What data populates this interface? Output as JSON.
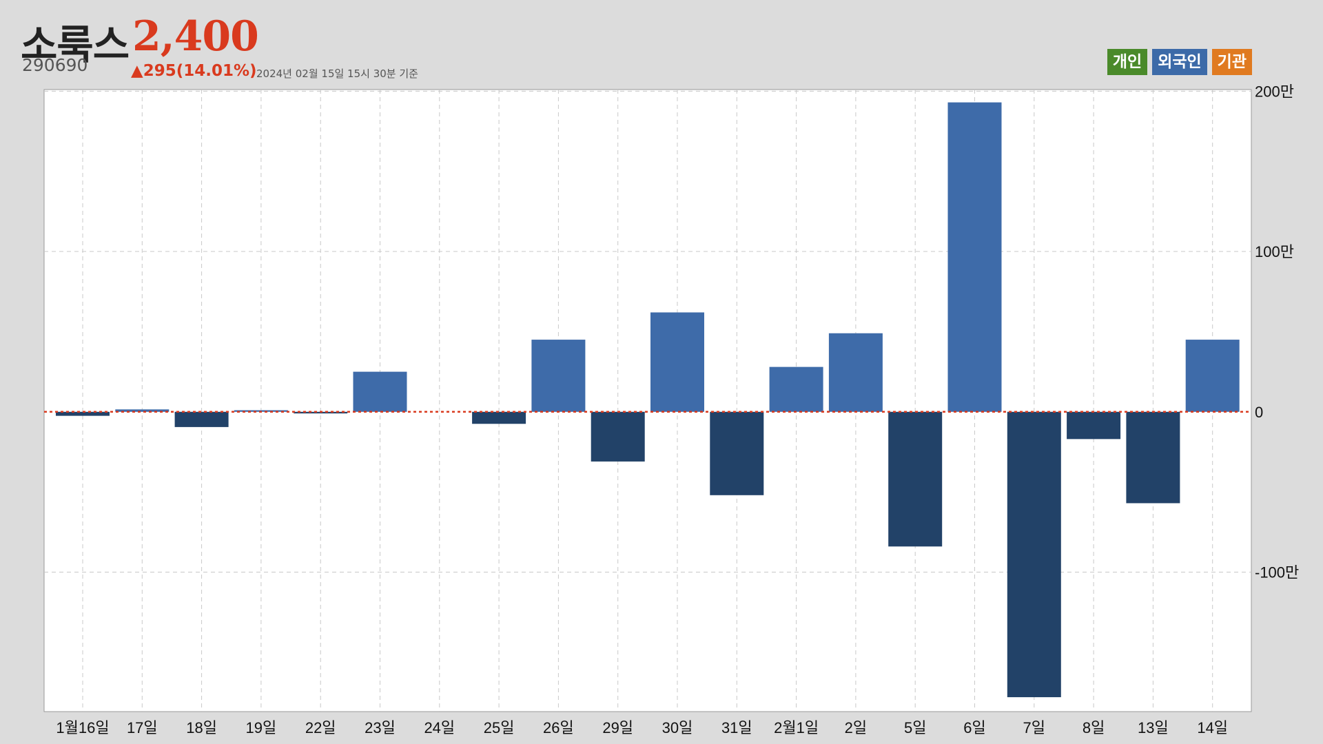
{
  "stock": {
    "name": "소룩스",
    "price": "2,400",
    "code": "290690",
    "change": "▲295(14.01%)",
    "timestamp": "2024년 02월 15일 15시 30분 기준",
    "up_color": "#d93a1e"
  },
  "legend": [
    {
      "label": "개인",
      "color": "#4a8a2a"
    },
    {
      "label": "외국인",
      "color": "#3c6aa8"
    },
    {
      "label": "기관",
      "color": "#e07a20"
    }
  ],
  "chart_data": {
    "type": "bar",
    "series": [
      {
        "name": "외국인",
        "values": [
          -2.5,
          1.5,
          -9.5,
          1,
          -1,
          25,
          0,
          -7.5,
          45,
          -31,
          62,
          -52,
          28,
          49,
          -84,
          193,
          -178,
          -17,
          -57,
          45
        ]
      }
    ],
    "categories": [
      "1월16일",
      "17일",
      "18일",
      "19일",
      "22일",
      "23일",
      "24일",
      "25일",
      "26일",
      "29일",
      "30일",
      "31일",
      "2월1일",
      "2일",
      "5일",
      "6일",
      "7일",
      "8일",
      "13일",
      "14일"
    ],
    "unit": "만",
    "ylim": [
      -187,
      201
    ],
    "yticks": [
      200,
      100,
      0,
      -100
    ],
    "ytick_labels": [
      "200만",
      "100만",
      "0",
      "-100만"
    ],
    "positive_color": "#3e6ba9",
    "negative_color": "#224268",
    "zero_line_color": "#d93a1e",
    "grid": true
  }
}
